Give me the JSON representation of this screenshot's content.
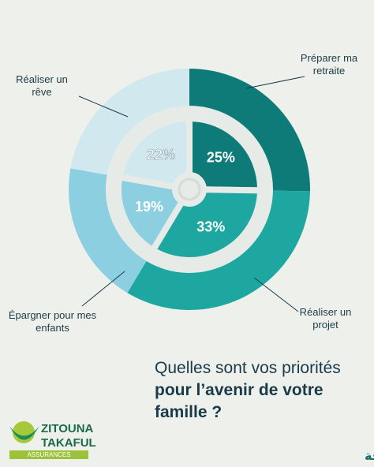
{
  "chart_data": {
    "type": "pie",
    "categories": [
      "Préparer ma retraite",
      "Réaliser un projet",
      "Épargner pour mes enfants",
      "Réaliser un rêve"
    ],
    "values": [
      25,
      33,
      19,
      22
    ],
    "value_labels": [
      "25%",
      "33%",
      "19%",
      "22%"
    ],
    "colors": [
      "#0f7b79",
      "#1ea7a1",
      "#8ccfe0",
      "#d1e8ee"
    ]
  },
  "title": {
    "line1": "Quelles sont vos priorités",
    "bold": "pour l’avenir de votre famille ?"
  },
  "brand": {
    "name1": "ZITOUNA",
    "name2": "TAKAFUL",
    "sub": "ASSURANCES",
    "tagline": "وقفتنا معاكم صحيحة"
  }
}
